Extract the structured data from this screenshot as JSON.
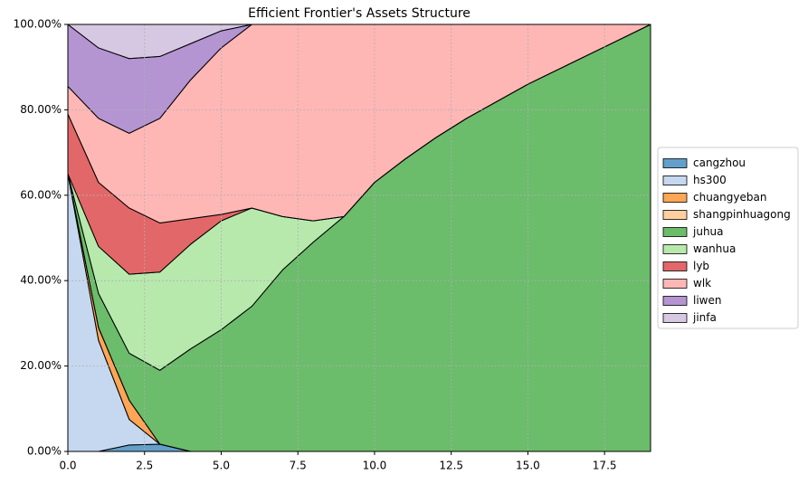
{
  "chart_data": {
    "type": "stacked_area",
    "title": "Efficient Frontier's Assets Structure",
    "x": [
      0,
      1,
      2,
      3,
      4,
      5,
      6,
      7,
      8,
      9,
      10,
      11,
      12,
      13,
      14,
      15,
      16,
      17,
      18,
      19
    ],
    "series": [
      {
        "name": "cangzhou",
        "color": "#1f77b4",
        "values": [
          0,
          0,
          1.5,
          1.7,
          0,
          0,
          0,
          0,
          0,
          0,
          0,
          0,
          0,
          0,
          0,
          0,
          0,
          0,
          0,
          0
        ]
      },
      {
        "name": "hs300",
        "color": "#aec7e8",
        "values": [
          65,
          26,
          6,
          0,
          0,
          0,
          0,
          0,
          0,
          0,
          0,
          0,
          0,
          0,
          0,
          0,
          0,
          0,
          0,
          0
        ]
      },
      {
        "name": "chuangyeban",
        "color": "#ff7f0e",
        "values": [
          0,
          3,
          4.5,
          0,
          0,
          0,
          0,
          0,
          0,
          0,
          0,
          0,
          0,
          0,
          0,
          0,
          0,
          0,
          0,
          0
        ]
      },
      {
        "name": "shangpinhuagong",
        "color": "#ffbb78",
        "values": [
          0,
          0,
          0,
          0,
          0,
          0,
          0,
          0,
          0,
          0,
          0,
          0,
          0,
          0,
          0,
          0,
          0,
          0,
          0,
          0
        ]
      },
      {
        "name": "juhua",
        "color": "#2ca02c",
        "values": [
          0,
          8,
          11,
          17.3,
          24,
          28.5,
          34,
          42.5,
          49,
          55,
          63,
          68.5,
          73.5,
          78,
          82,
          86,
          89.5,
          93,
          96.5,
          100
        ]
      },
      {
        "name": "wanhua",
        "color": "#98df8a",
        "values": [
          0,
          11,
          18.5,
          23,
          24.5,
          25.5,
          23,
          12.5,
          5,
          0,
          0,
          0,
          0,
          0,
          0,
          0,
          0,
          0,
          0,
          0
        ]
      },
      {
        "name": "lyb",
        "color": "#d62728",
        "values": [
          14,
          15,
          15.5,
          11.5,
          6,
          1.5,
          0,
          0,
          0,
          0,
          0,
          0,
          0,
          0,
          0,
          0,
          0,
          0,
          0,
          0
        ]
      },
      {
        "name": "wlk",
        "color": "#ff9896",
        "values": [
          6.5,
          15,
          17.5,
          24.5,
          32.5,
          39,
          43,
          45,
          46,
          45,
          37,
          31.5,
          26.5,
          22,
          18,
          14,
          10.5,
          7,
          3.5,
          0
        ]
      },
      {
        "name": "liwen",
        "color": "#9467bd",
        "values": [
          14.5,
          16.5,
          17.5,
          14.5,
          8.5,
          4,
          0,
          0,
          0,
          0,
          0,
          0,
          0,
          0,
          0,
          0,
          0,
          0,
          0,
          0
        ]
      },
      {
        "name": "jinfa",
        "color": "#c5b0d5",
        "values": [
          0,
          5.5,
          8,
          7.5,
          4.5,
          1.5,
          0,
          0,
          0,
          0,
          0,
          0,
          0,
          0,
          0,
          0,
          0,
          0,
          0,
          0
        ]
      }
    ],
    "xlim": [
      0,
      19
    ],
    "xticks": [
      {
        "value": 0,
        "label": "0.0"
      },
      2.5,
      {
        "value": 5,
        "label": "5.0"
      },
      7.5,
      {
        "value": 10,
        "label": "10.0"
      },
      12.5,
      {
        "value": 15,
        "label": "15.0"
      },
      17.5
    ],
    "ylim": [
      0,
      100
    ],
    "yticks": [
      {
        "value": 0,
        "label": "0.00%"
      },
      {
        "value": 20,
        "label": "20.00%"
      },
      {
        "value": 40,
        "label": "40.00%"
      },
      {
        "value": 60,
        "label": "60.00%"
      },
      {
        "value": 80,
        "label": "80.00%"
      },
      {
        "value": 100,
        "label": "100.00%"
      }
    ],
    "grid": true,
    "legend": "right"
  }
}
